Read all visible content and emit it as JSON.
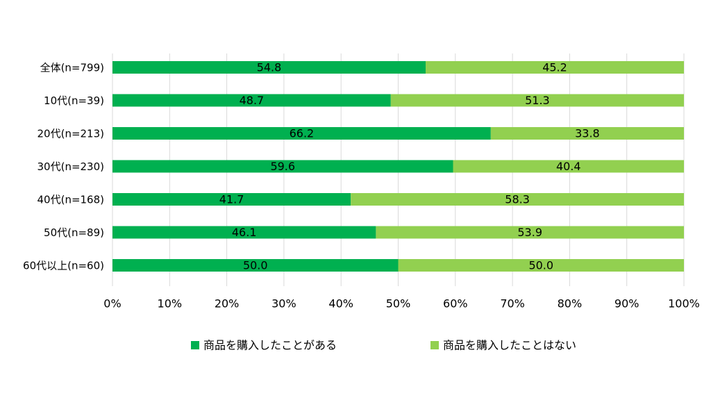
{
  "chart_data": {
    "type": "bar",
    "orientation": "horizontal",
    "stacked": true,
    "categories": [
      "全体(n=799)",
      "10代(n=39)",
      "20代(n=213)",
      "30代(n=230)",
      "40代(n=168)",
      "50代(n=89)",
      "60代以上(n=60)"
    ],
    "series": [
      {
        "name": "商品を購入したことがある",
        "color": "#00B050",
        "values": [
          54.8,
          48.7,
          66.2,
          59.6,
          41.7,
          46.1,
          50.0
        ]
      },
      {
        "name": "商品を購入したことはない",
        "color": "#92D050",
        "values": [
          45.2,
          51.3,
          33.8,
          40.4,
          58.3,
          53.9,
          50.0
        ]
      }
    ],
    "data_labels": [
      [
        "54.8",
        "48.7",
        "66.2",
        "59.6",
        "41.7",
        "46.1",
        "50.0"
      ],
      [
        "45.2",
        "51.3",
        "33.8",
        "40.4",
        "58.3",
        "53.9",
        "50.0"
      ]
    ],
    "xlim": [
      0,
      100
    ],
    "xticks": [
      "0%",
      "10%",
      "20%",
      "30%",
      "40%",
      "50%",
      "60%",
      "70%",
      "80%",
      "90%",
      "100%"
    ],
    "grid": true,
    "legend_position": "bottom",
    "gridline_color": "#d9d9d9",
    "text_color": "#000000"
  }
}
